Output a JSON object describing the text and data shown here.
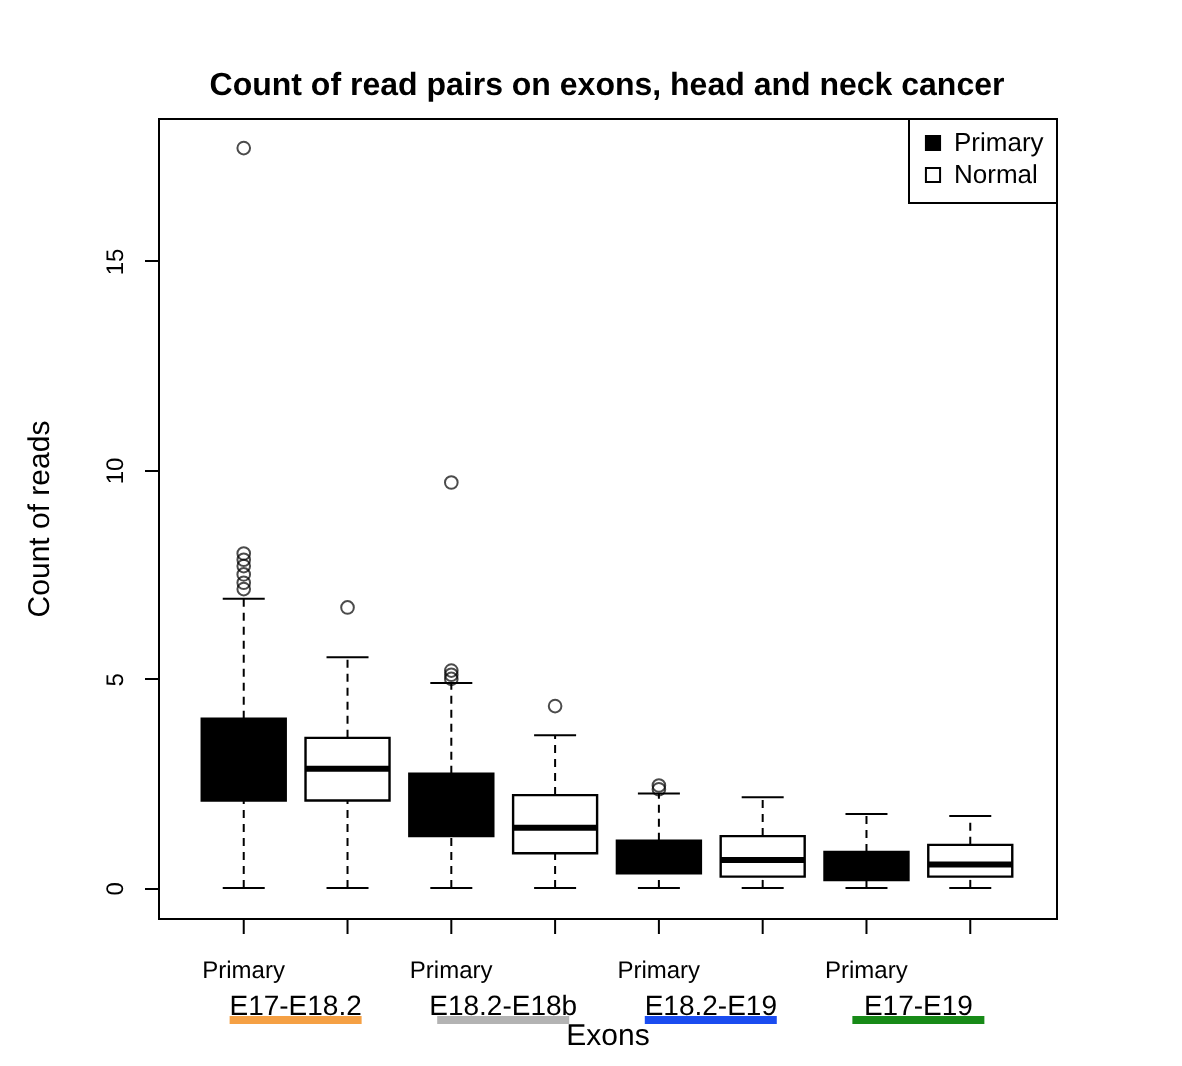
{
  "chart_data": {
    "type": "box",
    "title": "Count of read pairs on exons, head and neck cancer",
    "xlabel": "Exons",
    "ylabel": "Count of reads",
    "categories": [
      "E17-E18.2",
      "E18.2-E18b",
      "E18.2-E19",
      "E17-E19"
    ],
    "annotations": [
      "Primary",
      "Primary",
      "Primary",
      "Primary"
    ],
    "ylim": [
      -0.72,
      18.42
    ],
    "yticks": [
      0,
      5,
      10,
      15
    ],
    "grid": false,
    "legend": "top right",
    "series": [
      {
        "name": "Primary",
        "color": "#000000",
        "boxes": [
          {
            "low": 0,
            "q1": 2.09,
            "median": null,
            "q3": 4.05,
            "high": 6.92,
            "outliers": [
              7.15,
              7.3,
              7.5,
              7.7,
              7.85,
              8.0,
              17.7
            ]
          },
          {
            "low": 0,
            "q1": 1.24,
            "median": null,
            "q3": 2.73,
            "high": 4.9,
            "outliers": [
              5.0,
              5.1,
              5.2,
              9.7
            ]
          },
          {
            "low": 0,
            "q1": 0.35,
            "median": null,
            "q3": 1.13,
            "high": 2.26,
            "outliers": [
              2.36,
              2.45
            ]
          },
          {
            "low": 0,
            "q1": 0.19,
            "median": null,
            "q3": 0.86,
            "high": 1.77
          }
        ]
      },
      {
        "name": "Normal",
        "color": "#ffffff",
        "boxes": [
          {
            "low": 0,
            "q1": 2.09,
            "median": 2.85,
            "q3": 3.59,
            "high": 5.52,
            "outliers": [
              6.71
            ]
          },
          {
            "low": 0,
            "q1": 0.83,
            "median": 1.44,
            "q3": 2.22,
            "high": 3.65,
            "outliers": [
              4.35
            ]
          },
          {
            "low": 0,
            "q1": 0.27,
            "median": 0.67,
            "q3": 1.24,
            "high": 2.17
          },
          {
            "low": 0,
            "q1": 0.27,
            "median": 0.56,
            "q3": 1.03,
            "high": 1.72
          }
        ]
      }
    ]
  }
}
